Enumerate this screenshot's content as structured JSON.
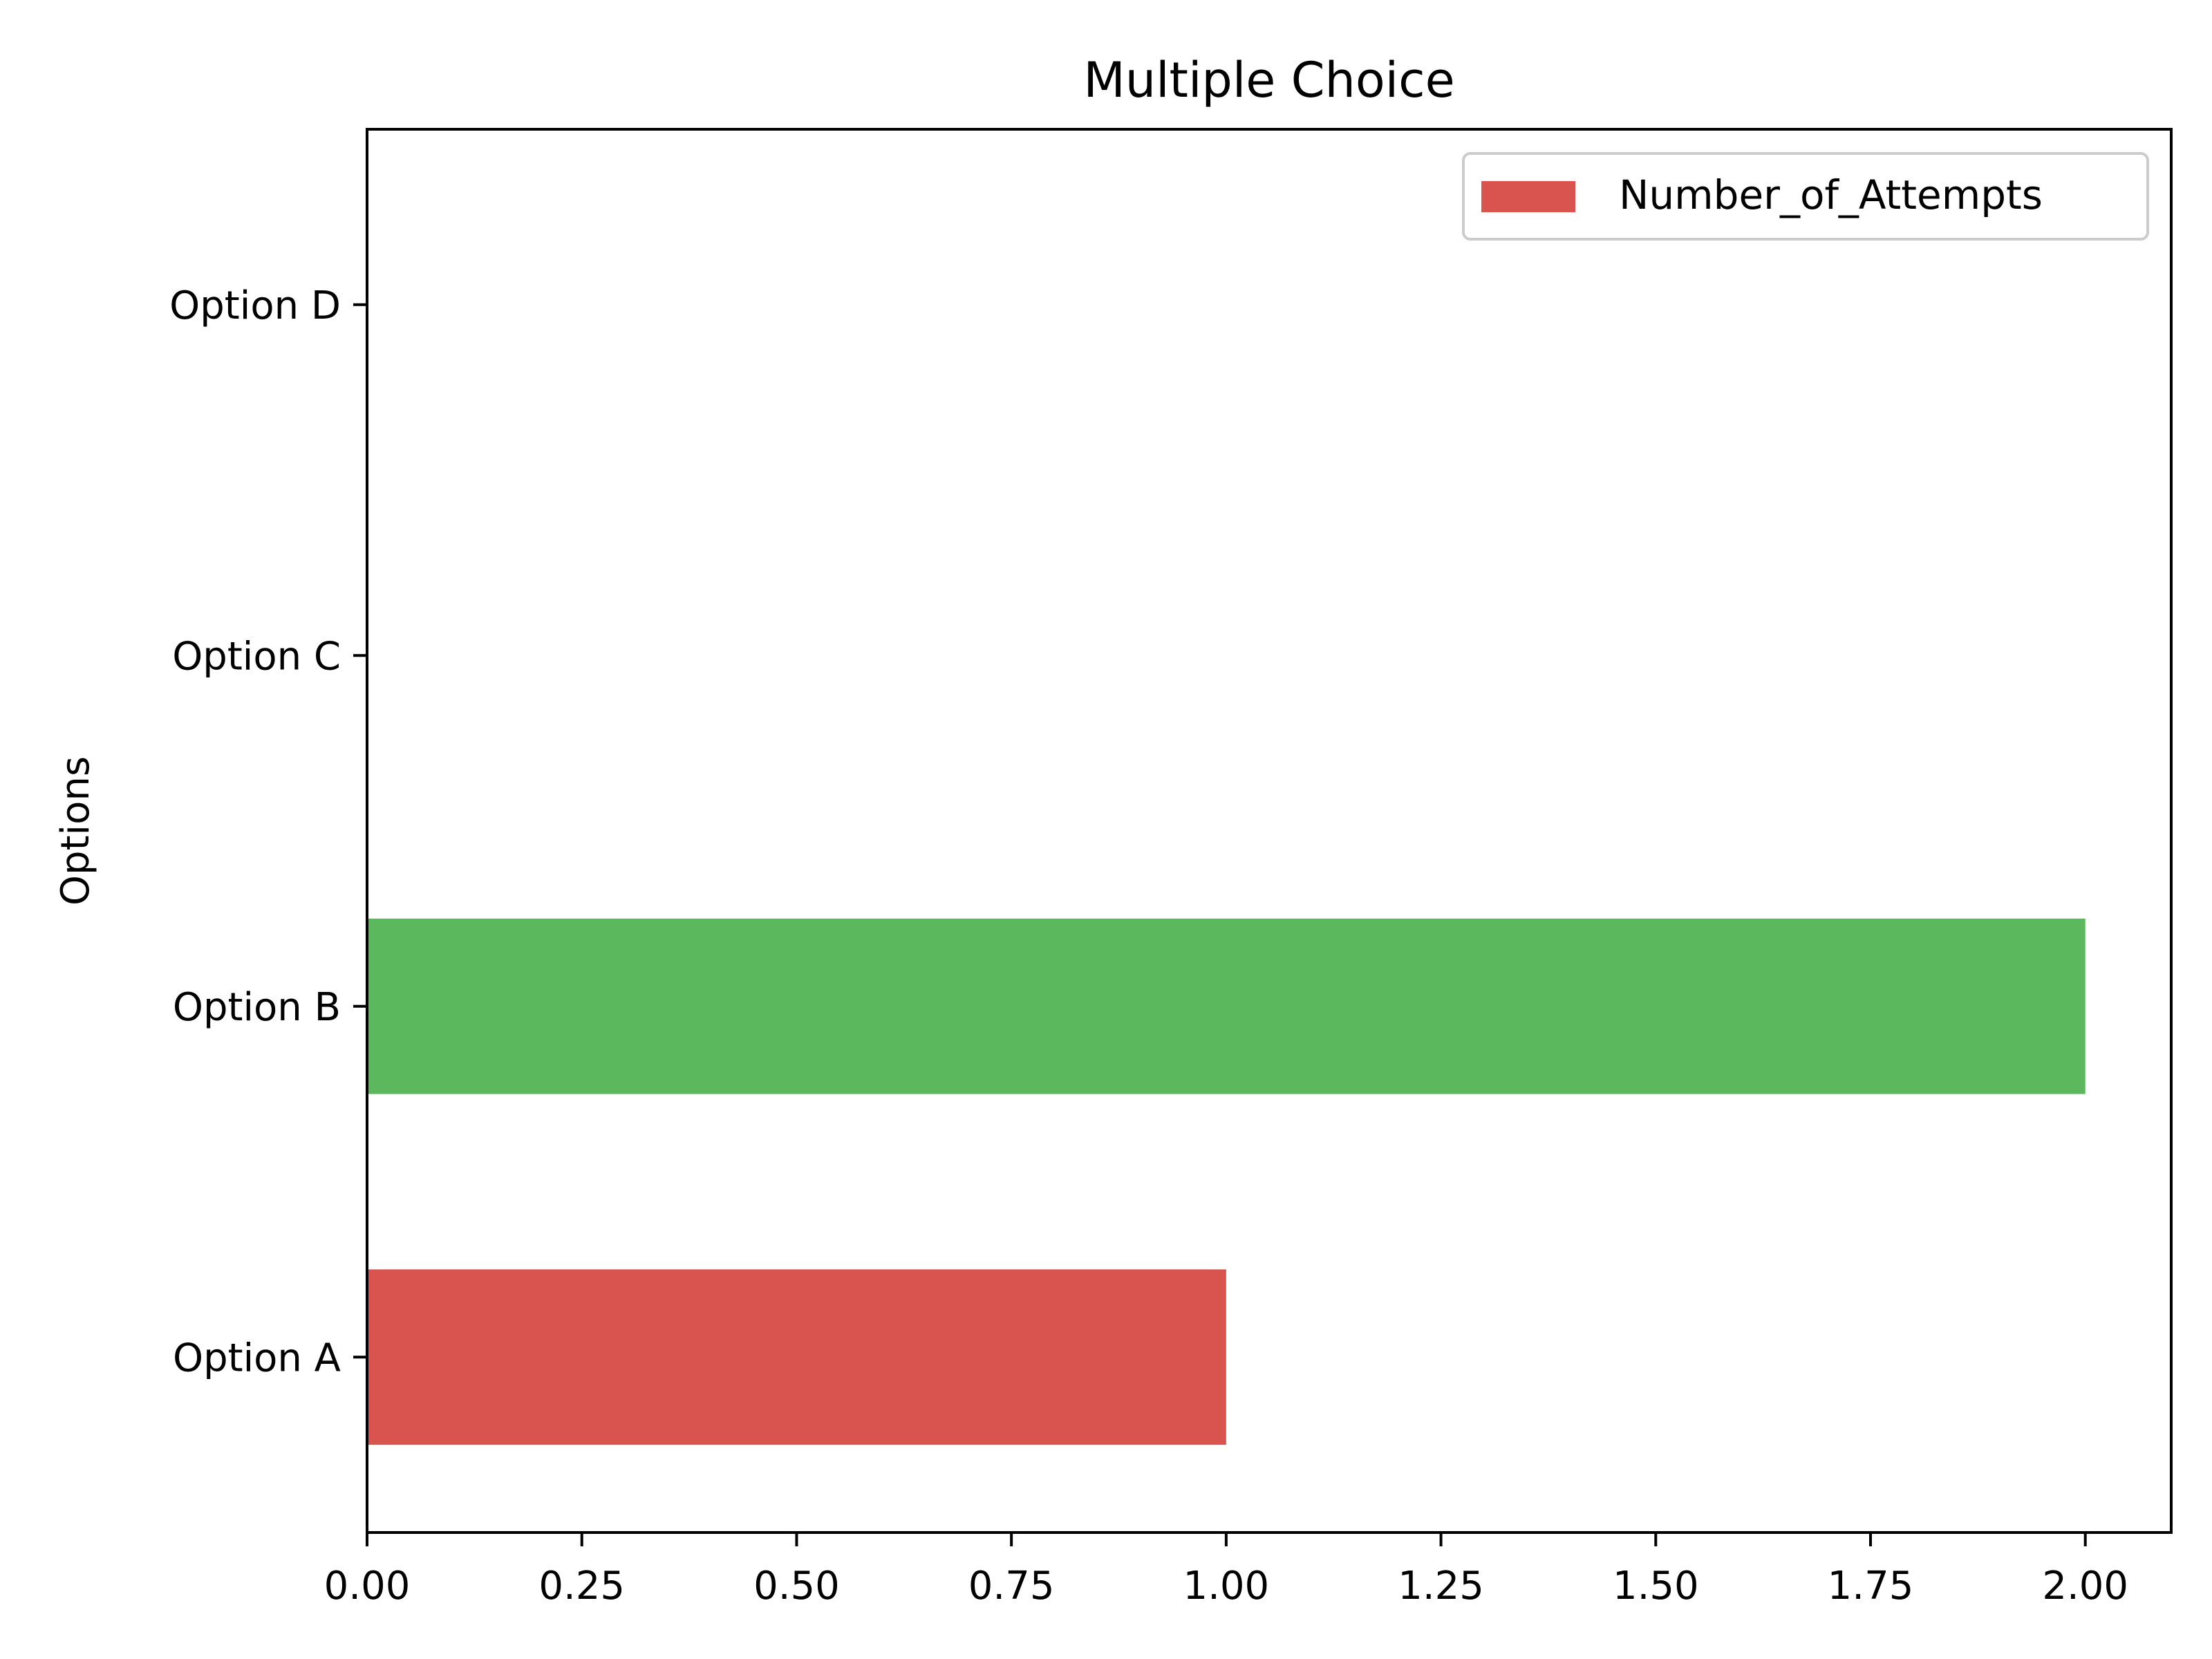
{
  "chart_data": {
    "type": "bar",
    "orientation": "horizontal",
    "title": "Multiple Choice",
    "xlabel": "",
    "ylabel": "Options",
    "categories": [
      "Option A",
      "Option B",
      "Option C",
      "Option D"
    ],
    "series": [
      {
        "name": "Number_of_Attempts",
        "values": [
          1,
          2,
          0,
          0
        ]
      }
    ],
    "bar_colors": [
      "#d9534f",
      "#5cb85c",
      "#d9534f",
      "#d9534f"
    ],
    "xlim": [
      0,
      2.1
    ],
    "xticks": [
      0,
      0.25,
      0.5,
      0.75,
      1.0,
      1.25,
      1.5,
      1.75,
      2.0
    ],
    "xtick_labels": [
      "0.00",
      "0.25",
      "0.50",
      "0.75",
      "1.00",
      "1.25",
      "1.50",
      "1.75",
      "2.00"
    ],
    "grid": false,
    "legend": {
      "position": "top-right",
      "entries": [
        {
          "label": "Number_of_Attempts",
          "color": "#d9534f"
        }
      ]
    }
  }
}
